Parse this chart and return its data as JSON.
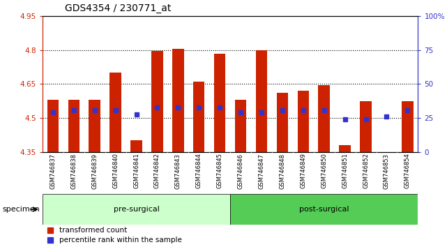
{
  "title": "GDS4354 / 230771_at",
  "samples": [
    "GSM746837",
    "GSM746838",
    "GSM746839",
    "GSM746840",
    "GSM746841",
    "GSM746842",
    "GSM746843",
    "GSM746844",
    "GSM746845",
    "GSM746846",
    "GSM746847",
    "GSM746848",
    "GSM746849",
    "GSM746850",
    "GSM746851",
    "GSM746852",
    "GSM746853",
    "GSM746854"
  ],
  "bar_values": [
    4.58,
    4.58,
    4.58,
    4.7,
    4.4,
    4.795,
    4.805,
    4.66,
    4.785,
    4.58,
    4.8,
    4.61,
    4.62,
    4.645,
    4.38,
    4.575,
    4.345,
    4.575
  ],
  "bar_bottom": 4.35,
  "percentile_values": [
    4.525,
    4.535,
    4.535,
    4.535,
    4.515,
    4.545,
    4.545,
    4.545,
    4.545,
    4.525,
    4.525,
    4.535,
    4.535,
    4.535,
    4.495,
    4.495,
    4.505,
    4.535
  ],
  "bar_color": "#cc2200",
  "percentile_color": "#3333cc",
  "ylim_left": [
    4.35,
    4.95
  ],
  "ylim_right": [
    0,
    100
  ],
  "yticks_left": [
    4.35,
    4.5,
    4.65,
    4.8,
    4.95
  ],
  "yticks_right": [
    0,
    25,
    50,
    75,
    100
  ],
  "ytick_labels_left": [
    "4.35",
    "4.5",
    "4.65",
    "4.8",
    "4.95"
  ],
  "ytick_labels_right": [
    "0",
    "25",
    "50",
    "75",
    "100%"
  ],
  "hlines": [
    4.5,
    4.65,
    4.8
  ],
  "groups": [
    {
      "label": "pre-surgical",
      "start": 0,
      "end": 9,
      "color": "#ccffcc"
    },
    {
      "label": "post-surgical",
      "start": 9,
      "end": 18,
      "color": "#55cc55"
    }
  ],
  "specimen_label": "specimen",
  "legend_items": [
    {
      "label": "transformed count",
      "color": "#cc2200"
    },
    {
      "label": "percentile rank within the sample",
      "color": "#3333cc"
    }
  ],
  "title_fontsize": 10,
  "tick_fontsize": 7.5,
  "bar_width": 0.55,
  "bg_color": "#ffffff"
}
